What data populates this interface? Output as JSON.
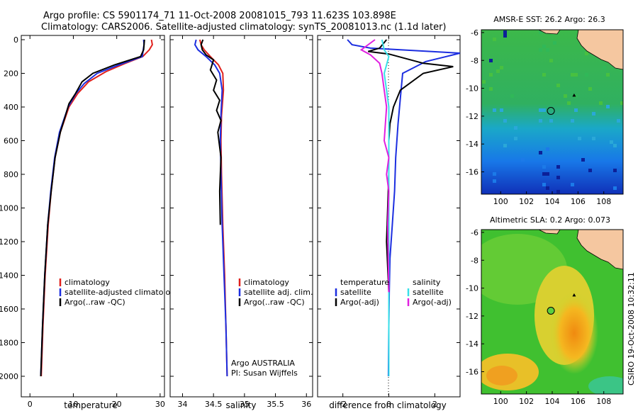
{
  "header": {
    "line1": "Argo profile: CS 5901174_71 11-Oct-2008 20081015_793 11.623S 103.898E",
    "line2": "Climatology: CARS2006. Satellite-adjusted climatology: synTS_20081013.nc (1.1d later)"
  },
  "colors": {
    "climatology": "#e0201c",
    "satellite": "#1c2ee0",
    "argo": "#000000",
    "satellite_salt": "#38e0e8",
    "argo_salt": "#e020e0"
  },
  "chart_data": [
    {
      "type": "line",
      "id": "temperature",
      "xlabel": "temperature",
      "ylabel": "",
      "xlim": [
        -2,
        31
      ],
      "ylim": [
        2060,
        0
      ],
      "xticks": [
        0,
        10,
        20,
        30
      ],
      "xtick_labels": [
        "0",
        "10",
        "20",
        "30"
      ],
      "yticks": [
        0,
        200,
        400,
        600,
        800,
        1000,
        1200,
        1400,
        1600,
        1800,
        2000
      ],
      "ytick_labels": [
        "0",
        "200",
        "400",
        "600",
        "800",
        "1000",
        "1200",
        "1400",
        "1600",
        "1800",
        "2000"
      ],
      "legend": [
        "climatology",
        "satellite-adjusted climatology",
        "Argo(..raw -QC)"
      ],
      "series": [
        {
          "name": "climatology",
          "color": "#e0201c",
          "x": [
            28.0,
            28.2,
            27.5,
            26.0,
            22.0,
            17.5,
            13.5,
            11.0,
            9.0,
            7.0,
            5.8,
            4.9,
            4.2,
            3.5,
            3.0,
            2.6
          ],
          "y": [
            0,
            30,
            60,
            100,
            140,
            190,
            250,
            320,
            400,
            550,
            700,
            900,
            1100,
            1400,
            1700,
            2000
          ]
        },
        {
          "name": "satellite-adjusted climatology",
          "color": "#1c2ee0",
          "x": [
            26.2,
            26.3,
            26.1,
            25.9,
            20.5,
            15.5,
            12.5,
            10.6,
            8.8,
            6.8,
            5.7,
            4.8,
            4.1,
            3.4,
            2.9,
            2.5
          ],
          "y": [
            0,
            30,
            60,
            100,
            150,
            200,
            260,
            320,
            400,
            550,
            700,
            900,
            1100,
            1400,
            1700,
            2000
          ]
        },
        {
          "name": "Argo(..raw -QC)",
          "color": "#000000",
          "x": [
            26.4,
            26.3,
            26.2,
            25.5,
            19.5,
            14.5,
            12.0,
            10.5,
            9.0,
            8.2,
            7.0,
            5.8,
            4.9,
            4.1,
            3.4,
            2.9,
            2.5
          ],
          "y": [
            0,
            30,
            60,
            100,
            150,
            200,
            250,
            320,
            380,
            450,
            550,
            700,
            900,
            1100,
            1400,
            1700,
            2000
          ]
        }
      ]
    },
    {
      "type": "line",
      "id": "salinity",
      "xlabel": "salinity",
      "xlim": [
        33.8,
        36.1
      ],
      "ylim": [
        2060,
        0
      ],
      "xticks": [
        34,
        34.5,
        35,
        35.5,
        36
      ],
      "xtick_labels": [
        "34",
        "34.5",
        "35",
        "35.5",
        "36"
      ],
      "legend": [
        "climatology",
        "satellite adj. clim.",
        "Argo(..raw -QC)"
      ],
      "annotation": [
        "Argo AUSTRALIA",
        "PI: Susan Wijffels"
      ],
      "series": [
        {
          "name": "climatology",
          "color": "#e0201c",
          "x": [
            34.28,
            34.3,
            34.35,
            34.45,
            34.58,
            34.65,
            34.66,
            34.63,
            34.62,
            34.63,
            34.65,
            34.68,
            34.7,
            34.72
          ],
          "y": [
            0,
            30,
            60,
            100,
            150,
            200,
            300,
            450,
            600,
            800,
            1100,
            1400,
            1700,
            2000
          ]
        },
        {
          "name": "satellite adj. clim.",
          "color": "#1c2ee0",
          "x": [
            34.22,
            34.2,
            34.25,
            34.38,
            34.52,
            34.6,
            34.64,
            34.62,
            34.61,
            34.62,
            34.64,
            34.67,
            34.7,
            34.72
          ],
          "y": [
            0,
            30,
            60,
            100,
            150,
            200,
            300,
            450,
            600,
            800,
            1100,
            1400,
            1700,
            2000
          ]
        },
        {
          "name": "Argo(..raw -QC)",
          "color": "#000000",
          "x": [
            34.33,
            34.3,
            34.32,
            34.38,
            34.5,
            34.45,
            34.55,
            34.5,
            34.6,
            34.55,
            34.62,
            34.57,
            34.62,
            34.6,
            34.61
          ],
          "y": [
            0,
            30,
            60,
            90,
            120,
            180,
            240,
            300,
            360,
            420,
            480,
            550,
            700,
            900,
            1100
          ]
        }
      ]
    },
    {
      "type": "line",
      "id": "difference",
      "xlabel": "difference from climatology",
      "xlim": [
        -3.1,
        3.1
      ],
      "ylim": [
        2060,
        0
      ],
      "xticks": [
        -2,
        0,
        2
      ],
      "xtick_labels": [
        "-2",
        "0",
        "2"
      ],
      "legend_temperature": [
        "temperature",
        "satellite",
        "Argo(-adj)"
      ],
      "legend_salinity": [
        "salinity",
        "satellite",
        "Argo(-adj)"
      ],
      "series": [
        {
          "name": "temperature satellite",
          "color": "#1c2ee0",
          "x": [
            -1.8,
            -1.6,
            -0.8,
            3.1,
            2.5,
            1.6,
            0.6,
            0.5,
            0.4,
            0.3,
            0.25,
            0.15,
            0.05,
            0.02,
            0.0,
            -0.02
          ],
          "y": [
            0,
            30,
            50,
            80,
            100,
            130,
            200,
            350,
            500,
            700,
            900,
            1100,
            1300,
            1500,
            1700,
            2000
          ]
        },
        {
          "name": "temperature Argo(-adj)",
          "color": "#000000",
          "x": [
            -0.1,
            -0.4,
            -0.9,
            0.0,
            1.5,
            2.8,
            1.5,
            0.5,
            0.2,
            0.05,
            0.0,
            0.0,
            -0.05,
            -0.1,
            0.0,
            0.0
          ],
          "y": [
            0,
            50,
            70,
            85,
            140,
            160,
            200,
            300,
            400,
            500,
            600,
            800,
            1000,
            1200,
            1500,
            2000
          ]
        },
        {
          "name": "salinity satellite",
          "color": "#38e0e8",
          "x": [
            -0.3,
            -0.2,
            0.0,
            -0.2,
            -0.1,
            0.0,
            0.0,
            0.0,
            0.0,
            0.0
          ],
          "y": [
            0,
            60,
            100,
            200,
            300,
            400,
            600,
            1000,
            1500,
            2000
          ]
        },
        {
          "name": "salinity Argo(-adj)",
          "color": "#e020e0",
          "x": [
            -0.6,
            -1.2,
            -0.8,
            -0.4,
            -0.3,
            -0.2,
            -0.1,
            -0.2,
            0.0,
            -0.1,
            0.0,
            -0.05,
            0.0
          ],
          "y": [
            0,
            60,
            90,
            140,
            200,
            300,
            400,
            600,
            700,
            800,
            900,
            1100,
            1500
          ]
        }
      ]
    },
    {
      "type": "heatmap",
      "id": "sst",
      "title": "AMSR-E SST: 26.2 Argo: 26.3",
      "xlim": [
        98.5,
        109.5
      ],
      "ylim": [
        -17.6,
        -5.8
      ],
      "xticks": [
        100,
        102,
        104,
        106,
        108
      ],
      "xtick_labels": [
        "100",
        "102",
        "104",
        "106",
        "108"
      ],
      "yticks": [
        -6,
        -8,
        -10,
        -12,
        -14,
        -16
      ],
      "ytick_labels": [
        "-6",
        "-8",
        "-10",
        "-12",
        "-14",
        "-16"
      ],
      "argo_position": [
        103.898,
        -11.623
      ],
      "marker_position": [
        105.7,
        -10.5
      ]
    },
    {
      "type": "heatmap",
      "id": "sla",
      "title": "Altimetric SLA: 0.2 Argo: 0.073",
      "xlim": [
        98.5,
        109.5
      ],
      "ylim": [
        -17.6,
        -5.8
      ],
      "xticks": [
        100,
        102,
        104,
        106,
        108
      ],
      "xtick_labels": [
        "100",
        "102",
        "104",
        "106",
        "108"
      ],
      "yticks": [
        -6,
        -8,
        -10,
        -12,
        -14,
        -16
      ],
      "ytick_labels": [
        "-6",
        "-8",
        "-10",
        "-12",
        "-14",
        "-16"
      ],
      "argo_position": [
        103.898,
        -11.623
      ],
      "marker_position": [
        105.7,
        -10.5
      ]
    }
  ],
  "side_label": "CSIRO 19-Oct-2008 10:32:11"
}
